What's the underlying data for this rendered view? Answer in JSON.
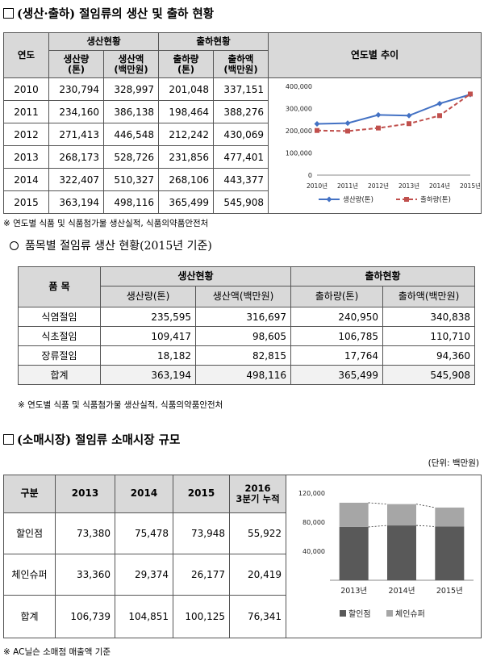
{
  "section1": {
    "heading": "(생산·출하) 절임류의 생산 및 출하 현황",
    "headers": {
      "year": "연도",
      "production_group": "생산현황",
      "shipment_group": "출하현황",
      "trend": "연도별 추이",
      "prod_qty": [
        "생산량",
        "(톤)"
      ],
      "prod_amt": [
        "생산액",
        "(백만원)"
      ],
      "ship_qty": [
        "출하량",
        "(톤)"
      ],
      "ship_amt": [
        "출하액",
        "(백만원)"
      ]
    },
    "rows": [
      {
        "year": "2010",
        "prod_qty": "230,794",
        "prod_amt": "328,997",
        "ship_qty": "201,048",
        "ship_amt": "337,151"
      },
      {
        "year": "2011",
        "prod_qty": "234,160",
        "prod_amt": "386,138",
        "ship_qty": "198,464",
        "ship_amt": "388,276"
      },
      {
        "year": "2012",
        "prod_qty": "271,413",
        "prod_amt": "446,548",
        "ship_qty": "212,242",
        "ship_amt": "430,069"
      },
      {
        "year": "2013",
        "prod_qty": "268,173",
        "prod_amt": "528,726",
        "ship_qty": "231,856",
        "ship_amt": "477,401"
      },
      {
        "year": "2014",
        "prod_qty": "322,407",
        "prod_amt": "510,327",
        "ship_qty": "268,106",
        "ship_amt": "443,377"
      },
      {
        "year": "2015",
        "prod_qty": "363,194",
        "prod_amt": "498,116",
        "ship_qty": "365,499",
        "ship_amt": "545,908"
      }
    ],
    "note": "※ 연도별 식품 및 식품첨가물 생산실적, 식품의약품안전처"
  },
  "section2": {
    "heading": "품목별 절임류 생산 현황(2015년 기준)",
    "headers": {
      "item": "품 목",
      "production_group": "생산현황",
      "shipment_group": "출하현황",
      "prod_qty": "생산량(톤)",
      "prod_amt": "생산액(백만원)",
      "ship_qty": "출하량(톤)",
      "ship_amt": "출하액(백만원)"
    },
    "rows": [
      {
        "item": "식염절임",
        "prod_qty": "235,595",
        "prod_amt": "316,697",
        "ship_qty": "240,950",
        "ship_amt": "340,838"
      },
      {
        "item": "식초절임",
        "prod_qty": "109,417",
        "prod_amt": "98,605",
        "ship_qty": "106,785",
        "ship_amt": "110,710"
      },
      {
        "item": "장류절임",
        "prod_qty": "18,182",
        "prod_amt": "82,815",
        "ship_qty": "17,764",
        "ship_amt": "94,360"
      },
      {
        "item": "합계",
        "prod_qty": "363,194",
        "prod_amt": "498,116",
        "ship_qty": "365,499",
        "ship_amt": "545,908"
      }
    ],
    "note": "※ 연도별 식품 및 식품첨가물 생산실적, 식품의약품안전처"
  },
  "section3": {
    "heading": "(소매시장) 절임류 소매시장 규모",
    "unit": "(단위: 백만원)",
    "headers": {
      "category": "구분",
      "y2013": "2013",
      "y2014": "2014",
      "y2015": "2015",
      "y2016": [
        "2016",
        "3분기 누적"
      ]
    },
    "rows": [
      {
        "label": "할인점",
        "v2013": "73,380",
        "v2014": "75,478",
        "v2015": "73,948",
        "v2016": "55,922"
      },
      {
        "label": "체인슈퍼",
        "v2013": "33,360",
        "v2014": "29,374",
        "v2015": "26,177",
        "v2016": "20,419"
      },
      {
        "label": "합계",
        "v2013": "106,739",
        "v2014": "104,851",
        "v2015": "100,125",
        "v2016": "76,341"
      }
    ],
    "note": "※ AC닐슨 소매점 매출액 기준"
  },
  "colors": {
    "header_bg": "#d9d9d9",
    "production_line": "#4472c4",
    "shipment_line": "#c0504d",
    "discount_bar": "#595959",
    "chain_bar": "#a6a6a6"
  },
  "chart_data": [
    {
      "type": "line",
      "x": [
        "2010년",
        "2011년",
        "2012년",
        "2013년",
        "2014년",
        "2015년"
      ],
      "series": [
        {
          "name": "생산량(톤)",
          "values": [
            230794,
            234160,
            271413,
            268173,
            322407,
            363194
          ]
        },
        {
          "name": "출하량(톤)",
          "values": [
            201048,
            198464,
            212242,
            231856,
            268106,
            365499
          ]
        }
      ],
      "ylim": [
        0,
        400000
      ],
      "yticks": [
        "0",
        "100,000",
        "200,000",
        "300,000",
        "400,000"
      ],
      "legend": "bottom",
      "grid": false
    },
    {
      "type": "bar",
      "stacked": true,
      "categories": [
        "2013년",
        "2014년",
        "2015년"
      ],
      "series": [
        {
          "name": "할인점",
          "values": [
            73380,
            75478,
            73948
          ]
        },
        {
          "name": "체인슈퍼",
          "values": [
            33360,
            29374,
            26177
          ]
        }
      ],
      "ylim": [
        0,
        120000
      ],
      "yticks": [
        "40,000",
        "80,000",
        "120,000"
      ],
      "legend": "bottom",
      "grid": false
    }
  ]
}
